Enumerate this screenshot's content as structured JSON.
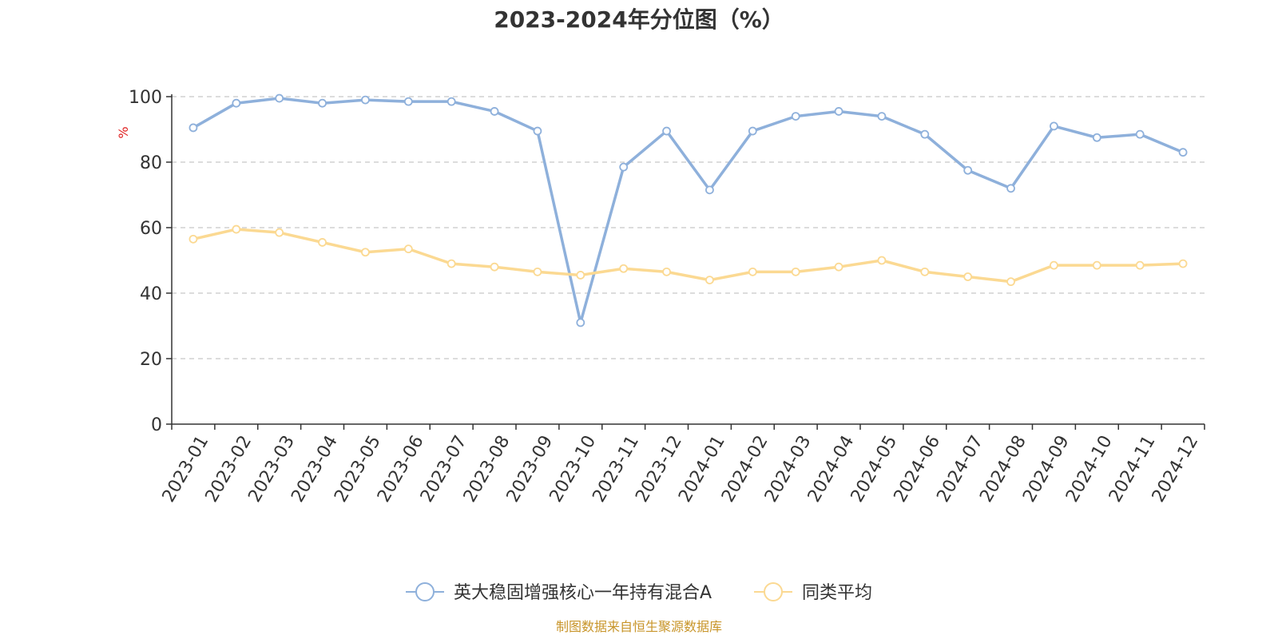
{
  "chart_data": {
    "type": "line",
    "title": "2023-2024年分位图（%）",
    "ylabel": "%",
    "ylim": [
      0,
      100
    ],
    "yticks": [
      0,
      20,
      40,
      60,
      80,
      100
    ],
    "grid": true,
    "legend_position": "bottom-center",
    "categories": [
      "2023-01",
      "2023-02",
      "2023-03",
      "2023-04",
      "2023-05",
      "2023-06",
      "2023-07",
      "2023-08",
      "2023-09",
      "2023-10",
      "2023-11",
      "2023-12",
      "2024-01",
      "2024-02",
      "2024-03",
      "2024-04",
      "2024-05",
      "2024-06",
      "2024-07",
      "2024-08",
      "2024-09",
      "2024-10",
      "2024-11",
      "2024-12"
    ],
    "series": [
      {
        "name": "英大稳固增强核心一年持有混合A",
        "color": "#8eb0db",
        "values": [
          90.5,
          98.0,
          99.5,
          98.0,
          99.0,
          98.5,
          98.5,
          95.5,
          89.5,
          31.0,
          78.5,
          89.5,
          71.5,
          89.5,
          94.0,
          95.5,
          94.0,
          88.5,
          77.5,
          72.0,
          91.0,
          87.5,
          88.5,
          83.0
        ]
      },
      {
        "name": "同类平均",
        "color": "#fbd992",
        "values": [
          56.5,
          59.5,
          58.5,
          55.5,
          52.5,
          53.5,
          49.0,
          48.0,
          46.5,
          45.5,
          47.5,
          46.5,
          44.0,
          46.5,
          46.5,
          48.0,
          50.0,
          46.5,
          45.0,
          43.5,
          48.5,
          48.5,
          48.5,
          49.0
        ]
      }
    ]
  },
  "source_text": "制图数据来自恒生聚源数据库",
  "colors": {
    "axis": "#333333",
    "grid": "#c8c8c8",
    "ylabel": "#e02020",
    "source": "#c8952a"
  }
}
